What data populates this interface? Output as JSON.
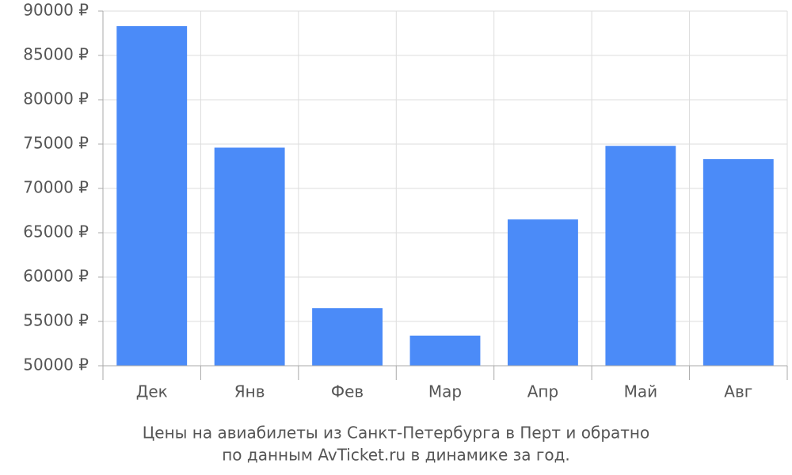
{
  "chart_data": {
    "type": "bar",
    "title": [
      "Цены на авиабилеты из Санкт-Петербурга в Перт и обратно",
      "по данным AvTicket.ru в динамике за год."
    ],
    "categories": [
      "Дек",
      "Янв",
      "Фев",
      "Мар",
      "Апр",
      "Май",
      "Авг"
    ],
    "values": [
      88300,
      74600,
      56500,
      53400,
      66500,
      74800,
      73300
    ],
    "color": "#4b8bf8",
    "ylim": [
      50000,
      90000
    ],
    "yticks": [
      {
        "value": 50000,
        "label": "50000 ₽"
      },
      {
        "value": 55000,
        "label": "55000 ₽"
      },
      {
        "value": 60000,
        "label": "60000 ₽"
      },
      {
        "value": 65000,
        "label": "65000 ₽"
      },
      {
        "value": 70000,
        "label": "70000 ₽"
      },
      {
        "value": 75000,
        "label": "75000 ₽"
      },
      {
        "value": 80000,
        "label": "80000 ₽"
      },
      {
        "value": 85000,
        "label": "85000 ₽"
      },
      {
        "value": 90000,
        "label": "90000 ₽"
      }
    ],
    "grid": true
  }
}
